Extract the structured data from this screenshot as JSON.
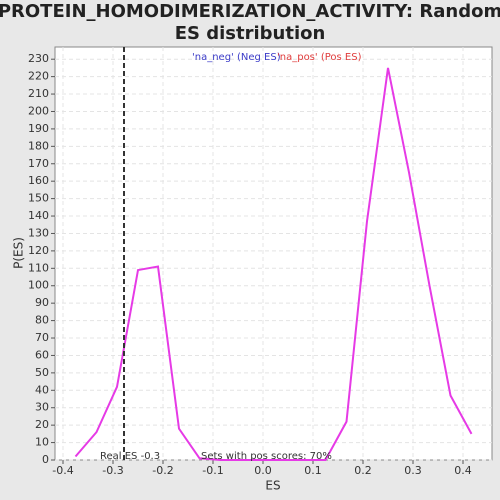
{
  "chart_data": {
    "type": "line",
    "title": "PROTEIN_HOMODIMERIZATION_ACTIVITY: Random ES distribution",
    "title_lines": [
      "PROTEIN_HOMODIMERIZATION_ACTIVITY: Random",
      "ES distribution"
    ],
    "x_label": "ES",
    "y_label": "P(ES)",
    "xlim": [
      -0.416,
      0.458
    ],
    "ylim": [
      0,
      237
    ],
    "xticks": [
      -0.4,
      -0.3,
      -0.2,
      -0.1,
      {
        "value": 0,
        "label": "0.0"
      },
      0.1,
      0.2,
      0.3,
      0.4
    ],
    "yticks": [
      0,
      10,
      20,
      30,
      40,
      50,
      60,
      70,
      80,
      90,
      100,
      110,
      120,
      130,
      140,
      150,
      160,
      170,
      180,
      190,
      200,
      210,
      220,
      230
    ],
    "grid": true,
    "series": [
      {
        "name": "Random ES",
        "color": "#e63ae6",
        "x": [
          -0.375,
          -0.333,
          -0.292,
          -0.25,
          -0.21,
          -0.168,
          -0.127,
          -0.085,
          -0.043,
          0,
          0.042,
          0.083,
          0.125,
          0.167,
          0.208,
          0.25,
          0.292,
          0.333,
          0.375,
          0.417
        ],
        "values": [
          2,
          16,
          42,
          109,
          111,
          18,
          1,
          0,
          0,
          0,
          0,
          0,
          0,
          22,
          137,
          225,
          165,
          100,
          37,
          15
        ]
      }
    ],
    "legend": [
      {
        "label": "'na_neg' (Neg ES)",
        "color": "#3c3cc8"
      },
      {
        "label": "'na_pos' (Pos ES)",
        "color": "#e03c3c"
      }
    ],
    "real_es": {
      "value": -0.278,
      "label": "Real ES -0.3"
    },
    "annotation": "Sets with pos scores: 70%"
  }
}
